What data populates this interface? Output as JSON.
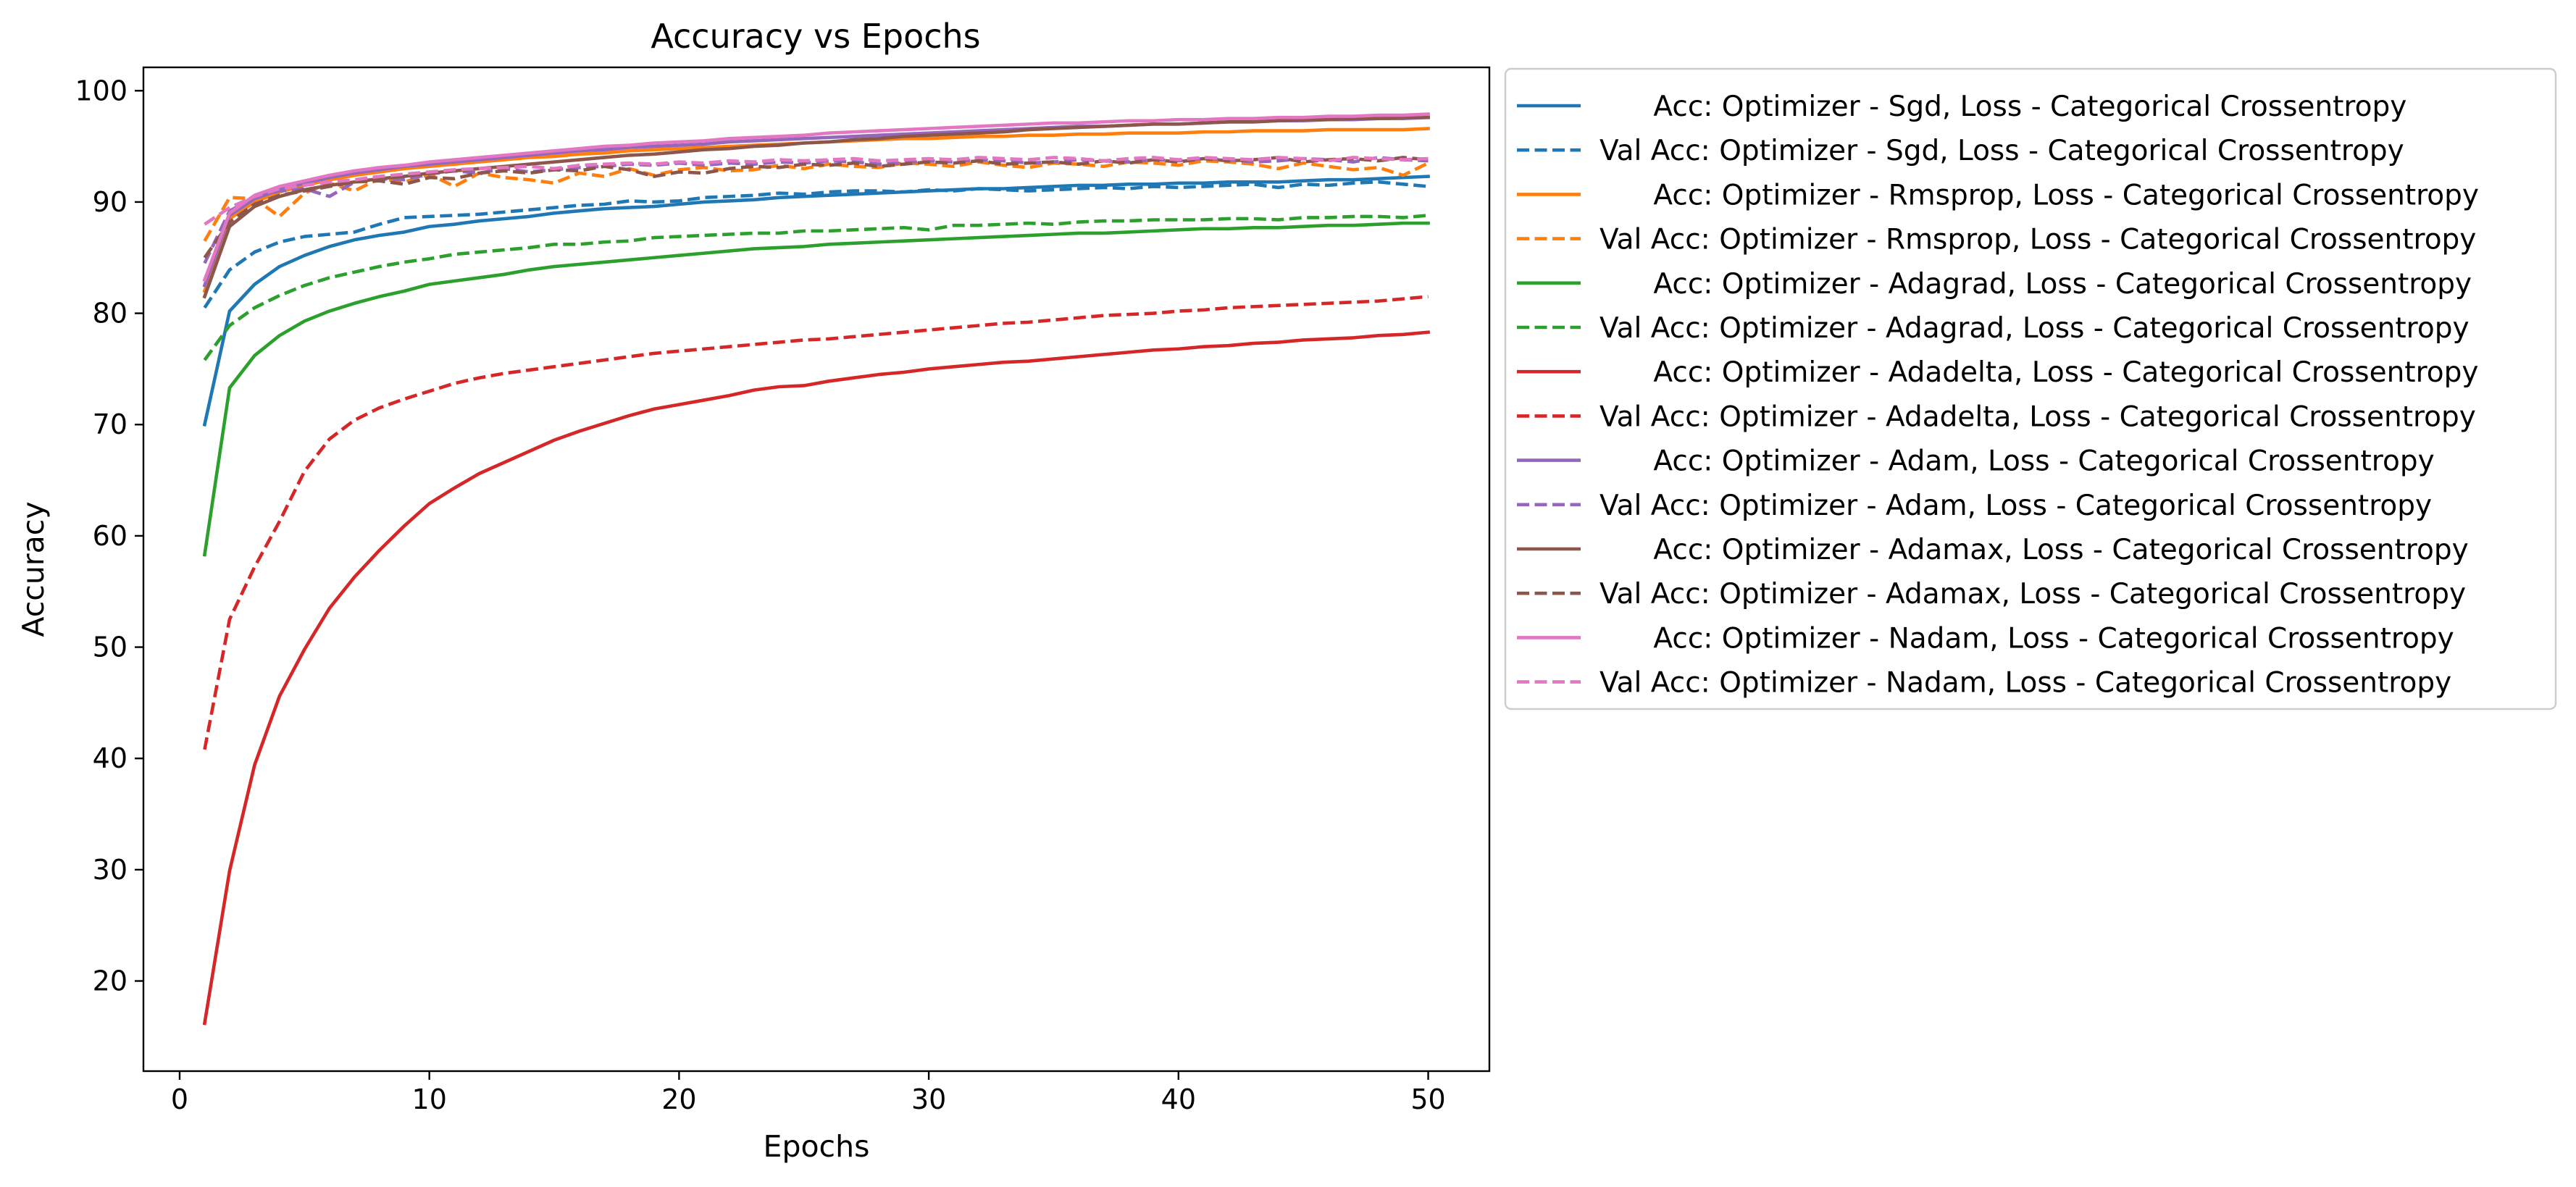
{
  "chart_data": {
    "type": "line",
    "title": "Accuracy vs Epochs",
    "xlabel": "Epochs",
    "ylabel": "Accuracy",
    "xlim": [
      -1.45,
      52.45
    ],
    "ylim": [
      11.9,
      102.1
    ],
    "xticks": [
      0,
      10,
      20,
      30,
      40,
      50
    ],
    "yticks": [
      20,
      30,
      40,
      50,
      60,
      70,
      80,
      90,
      100
    ],
    "grid": false,
    "legend_position": "outside-right",
    "x": [
      1,
      2,
      3,
      4,
      5,
      6,
      7,
      8,
      9,
      10,
      11,
      12,
      13,
      14,
      15,
      16,
      17,
      18,
      19,
      20,
      21,
      22,
      23,
      24,
      25,
      26,
      27,
      28,
      29,
      30,
      31,
      32,
      33,
      34,
      35,
      36,
      37,
      38,
      39,
      40,
      41,
      42,
      43,
      44,
      45,
      46,
      47,
      48,
      49,
      50
    ],
    "series": [
      {
        "name": "      Acc: Optimizer - Sgd, Loss - Categorical Crossentropy",
        "color": "#1f77b4",
        "dash": "solid",
        "values": [
          70.0,
          80.2,
          82.6,
          84.2,
          85.2,
          86.0,
          86.6,
          87.0,
          87.3,
          87.8,
          88.0,
          88.3,
          88.5,
          88.7,
          89.0,
          89.2,
          89.4,
          89.5,
          89.6,
          89.8,
          90.0,
          90.1,
          90.2,
          90.4,
          90.5,
          90.6,
          90.7,
          90.8,
          90.9,
          91.0,
          91.1,
          91.2,
          91.2,
          91.3,
          91.4,
          91.5,
          91.5,
          91.6,
          91.6,
          91.7,
          91.7,
          91.8,
          91.8,
          91.8,
          91.9,
          92.0,
          92.0,
          92.1,
          92.2,
          92.3
        ]
      },
      {
        "name": "Val Acc: Optimizer - Sgd, Loss - Categorical Crossentropy",
        "color": "#1f77b4",
        "dash": "dashed",
        "values": [
          80.5,
          83.9,
          85.5,
          86.4,
          86.9,
          87.1,
          87.3,
          88.0,
          88.6,
          88.7,
          88.8,
          88.9,
          89.1,
          89.3,
          89.5,
          89.7,
          89.8,
          90.1,
          90.0,
          90.1,
          90.4,
          90.5,
          90.6,
          90.8,
          90.7,
          90.9,
          91.0,
          91.0,
          90.9,
          91.1,
          91.0,
          91.2,
          91.1,
          91.0,
          91.1,
          91.2,
          91.3,
          91.2,
          91.4,
          91.3,
          91.4,
          91.5,
          91.6,
          91.3,
          91.6,
          91.5,
          91.7,
          91.8,
          91.6,
          91.4
        ]
      },
      {
        "name": "      Acc: Optimizer - Rmsprop, Loss - Categorical Crossentropy",
        "color": "#ff7f0e",
        "dash": "solid",
        "values": [
          82.0,
          88.5,
          90.0,
          90.9,
          91.5,
          92.0,
          92.4,
          92.7,
          93.0,
          93.2,
          93.4,
          93.6,
          93.8,
          94.0,
          94.1,
          94.3,
          94.4,
          94.6,
          94.7,
          94.8,
          94.9,
          95.0,
          95.1,
          95.2,
          95.3,
          95.4,
          95.5,
          95.6,
          95.7,
          95.7,
          95.8,
          95.9,
          95.9,
          96.0,
          96.0,
          96.1,
          96.1,
          96.2,
          96.2,
          96.2,
          96.3,
          96.3,
          96.4,
          96.4,
          96.4,
          96.5,
          96.5,
          96.5,
          96.5,
          96.6
        ]
      },
      {
        "name": "Val Acc: Optimizer - Rmsprop, Loss - Categorical Crossentropy",
        "color": "#ff7f0e",
        "dash": "dashed",
        "values": [
          86.5,
          90.4,
          90.3,
          88.7,
          90.8,
          91.7,
          91.0,
          92.1,
          91.8,
          92.5,
          91.4,
          92.6,
          92.2,
          92.0,
          91.7,
          92.6,
          92.3,
          93.0,
          92.4,
          92.9,
          93.1,
          92.8,
          92.9,
          93.3,
          93.0,
          93.4,
          93.2,
          93.1,
          93.5,
          93.4,
          93.2,
          93.6,
          93.3,
          93.1,
          93.5,
          93.4,
          93.2,
          93.6,
          93.5,
          93.3,
          93.7,
          93.6,
          93.4,
          93.0,
          93.5,
          93.2,
          92.9,
          93.1,
          92.4,
          93.5
        ]
      },
      {
        "name": "      Acc: Optimizer - Adagrad, Loss - Categorical Crossentropy",
        "color": "#2ca02c",
        "dash": "solid",
        "values": [
          58.3,
          73.3,
          76.2,
          78.0,
          79.3,
          80.2,
          80.9,
          81.5,
          82.0,
          82.6,
          82.9,
          83.2,
          83.5,
          83.9,
          84.2,
          84.4,
          84.6,
          84.8,
          85.0,
          85.2,
          85.4,
          85.6,
          85.8,
          85.9,
          86.0,
          86.2,
          86.3,
          86.4,
          86.5,
          86.6,
          86.7,
          86.8,
          86.9,
          87.0,
          87.1,
          87.2,
          87.2,
          87.3,
          87.4,
          87.5,
          87.6,
          87.6,
          87.7,
          87.7,
          87.8,
          87.9,
          87.9,
          88.0,
          88.1,
          88.1
        ]
      },
      {
        "name": "Val Acc: Optimizer - Adagrad, Loss - Categorical Crossentropy",
        "color": "#2ca02c",
        "dash": "dashed",
        "values": [
          75.8,
          78.9,
          80.5,
          81.6,
          82.5,
          83.2,
          83.7,
          84.2,
          84.6,
          84.9,
          85.3,
          85.5,
          85.7,
          85.9,
          86.2,
          86.2,
          86.4,
          86.5,
          86.8,
          86.9,
          87.0,
          87.1,
          87.2,
          87.2,
          87.4,
          87.4,
          87.5,
          87.6,
          87.7,
          87.5,
          87.9,
          87.9,
          88.0,
          88.1,
          88.0,
          88.2,
          88.3,
          88.3,
          88.4,
          88.4,
          88.4,
          88.5,
          88.5,
          88.4,
          88.6,
          88.6,
          88.7,
          88.7,
          88.6,
          88.8
        ]
      },
      {
        "name": "      Acc: Optimizer - Adadelta, Loss - Categorical Crossentropy",
        "color": "#d62728",
        "dash": "solid",
        "values": [
          16.2,
          29.9,
          39.4,
          45.6,
          49.8,
          53.5,
          56.3,
          58.7,
          60.9,
          62.9,
          64.3,
          65.6,
          66.6,
          67.6,
          68.6,
          69.4,
          70.1,
          70.8,
          71.4,
          71.8,
          72.2,
          72.6,
          73.1,
          73.4,
          73.5,
          73.9,
          74.2,
          74.5,
          74.7,
          75.0,
          75.2,
          75.4,
          75.6,
          75.7,
          75.9,
          76.1,
          76.3,
          76.5,
          76.7,
          76.8,
          77.0,
          77.1,
          77.3,
          77.4,
          77.6,
          77.7,
          77.8,
          78.0,
          78.1,
          78.3
        ]
      },
      {
        "name": "Val Acc: Optimizer - Adadelta, Loss - Categorical Crossentropy",
        "color": "#d62728",
        "dash": "dashed",
        "values": [
          40.8,
          52.5,
          57.2,
          61.3,
          65.8,
          68.7,
          70.4,
          71.5,
          72.3,
          73.0,
          73.7,
          74.2,
          74.6,
          74.9,
          75.2,
          75.5,
          75.8,
          76.1,
          76.4,
          76.6,
          76.8,
          77.0,
          77.2,
          77.4,
          77.6,
          77.7,
          77.9,
          78.1,
          78.3,
          78.5,
          78.7,
          78.9,
          79.1,
          79.2,
          79.4,
          79.6,
          79.8,
          79.9,
          80.0,
          80.2,
          80.3,
          80.5,
          80.6,
          80.7,
          80.8,
          80.9,
          81.0,
          81.1,
          81.3,
          81.5
        ]
      },
      {
        "name": "      Acc: Optimizer - Adam, Loss - Categorical Crossentropy",
        "color": "#9467bd",
        "dash": "solid",
        "values": [
          82.5,
          88.8,
          90.3,
          91.1,
          91.7,
          92.2,
          92.6,
          92.9,
          93.2,
          93.4,
          93.6,
          93.8,
          94.0,
          94.2,
          94.4,
          94.6,
          94.7,
          94.9,
          95.0,
          95.1,
          95.2,
          95.4,
          95.5,
          95.6,
          95.7,
          95.8,
          95.9,
          96.0,
          96.1,
          96.2,
          96.3,
          96.4,
          96.5,
          96.6,
          96.7,
          96.8,
          96.8,
          96.9,
          97.0,
          97.0,
          97.1,
          97.2,
          97.2,
          97.3,
          97.3,
          97.4,
          97.4,
          97.5,
          97.5,
          97.6
        ]
      },
      {
        "name": "Val Acc: Optimizer - Adam, Loss - Categorical Crossentropy",
        "color": "#9467bd",
        "dash": "dashed",
        "values": [
          84.5,
          89.2,
          90.4,
          91.0,
          91.2,
          90.5,
          91.8,
          92.1,
          92.0,
          92.5,
          92.8,
          92.6,
          93.0,
          92.7,
          92.9,
          93.1,
          93.2,
          93.4,
          93.3,
          93.5,
          93.3,
          93.5,
          93.4,
          93.6,
          93.5,
          93.7,
          93.6,
          93.4,
          93.5,
          93.7,
          93.6,
          93.8,
          93.7,
          93.5,
          93.6,
          93.8,
          93.7,
          93.6,
          93.8,
          93.7,
          93.9,
          93.8,
          93.6,
          93.7,
          93.9,
          93.8,
          93.6,
          94.0,
          93.8,
          93.7
        ]
      },
      {
        "name": "      Acc: Optimizer - Adamax, Loss - Categorical Crossentropy",
        "color": "#8c564b",
        "dash": "solid",
        "values": [
          81.5,
          87.8,
          89.6,
          90.5,
          91.1,
          91.5,
          91.8,
          92.1,
          92.3,
          92.6,
          92.8,
          93.0,
          93.2,
          93.4,
          93.6,
          93.8,
          94.0,
          94.2,
          94.3,
          94.5,
          94.7,
          94.8,
          95.0,
          95.1,
          95.3,
          95.4,
          95.6,
          95.7,
          95.9,
          96.0,
          96.1,
          96.2,
          96.3,
          96.5,
          96.6,
          96.7,
          96.8,
          96.9,
          97.0,
          97.0,
          97.1,
          97.2,
          97.2,
          97.3,
          97.4,
          97.4,
          97.5,
          97.5,
          97.6,
          97.6
        ]
      },
      {
        "name": "Val Acc: Optimizer - Adamax, Loss - Categorical Crossentropy",
        "color": "#8c564b",
        "dash": "dashed",
        "values": [
          85.0,
          88.2,
          89.8,
          90.6,
          91.0,
          91.4,
          91.8,
          91.9,
          91.6,
          92.2,
          92.1,
          92.6,
          92.8,
          92.6,
          92.9,
          92.8,
          93.2,
          92.9,
          92.3,
          92.7,
          92.6,
          93.0,
          93.2,
          93.1,
          93.4,
          93.3,
          93.5,
          93.2,
          93.4,
          93.6,
          93.5,
          93.7,
          93.4,
          93.5,
          93.6,
          93.4,
          93.7,
          93.5,
          93.8,
          93.6,
          93.9,
          93.7,
          93.8,
          94.0,
          93.6,
          93.8,
          93.9,
          93.7,
          94.0,
          93.8
        ]
      },
      {
        "name": "      Acc: Optimizer - Nadam, Loss - Categorical Crossentropy",
        "color": "#e377c2",
        "dash": "solid",
        "values": [
          83.0,
          89.0,
          90.6,
          91.4,
          91.9,
          92.4,
          92.8,
          93.1,
          93.3,
          93.6,
          93.8,
          94.0,
          94.2,
          94.4,
          94.6,
          94.8,
          95.0,
          95.1,
          95.3,
          95.4,
          95.5,
          95.7,
          95.8,
          95.9,
          96.0,
          96.2,
          96.3,
          96.4,
          96.5,
          96.6,
          96.7,
          96.8,
          96.9,
          97.0,
          97.1,
          97.1,
          97.2,
          97.3,
          97.3,
          97.4,
          97.4,
          97.5,
          97.5,
          97.6,
          97.6,
          97.7,
          97.7,
          97.8,
          97.8,
          97.9
        ]
      },
      {
        "name": "Val Acc: Optimizer - Nadam, Loss - Categorical Crossentropy",
        "color": "#e377c2",
        "dash": "dashed",
        "values": [
          88.0,
          89.5,
          90.5,
          91.2,
          91.5,
          91.8,
          92.0,
          92.3,
          92.5,
          92.7,
          92.9,
          93.0,
          93.1,
          93.2,
          93.0,
          93.3,
          93.4,
          93.5,
          93.4,
          93.6,
          93.5,
          93.7,
          93.6,
          93.8,
          93.7,
          93.8,
          93.9,
          93.7,
          93.8,
          93.9,
          93.8,
          94.0,
          93.9,
          93.8,
          94.0,
          93.9,
          93.7,
          93.9,
          94.0,
          93.8,
          94.0,
          93.9,
          93.8,
          94.0,
          93.9,
          93.7,
          94.0,
          93.9,
          93.8,
          93.9
        ]
      }
    ]
  }
}
